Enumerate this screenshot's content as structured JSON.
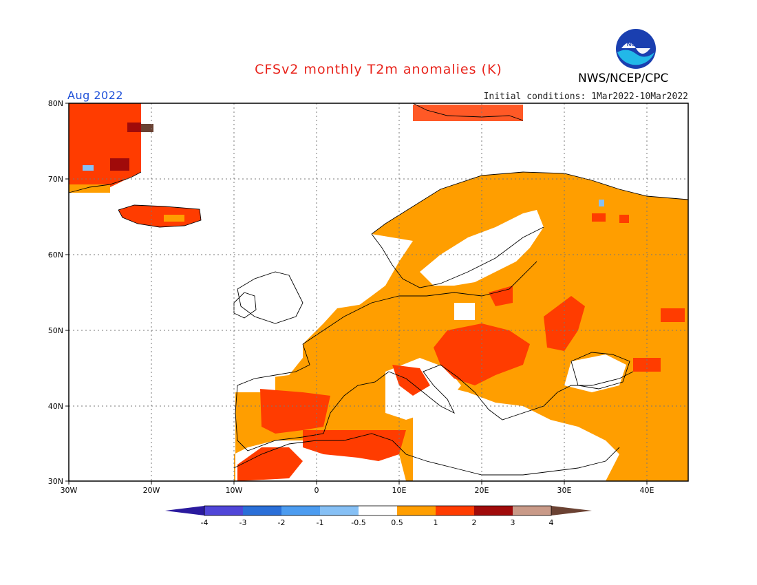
{
  "header": {
    "title": "CFSv2 monthly T2m anomalies (K)",
    "org": "NWS/NCEP/CPC",
    "valid_month": "Aug 2022",
    "initial_conditions": "Initial conditions: 1Mar2022-10Mar2022",
    "logo_text": "NOAA"
  },
  "map": {
    "region": "Europe",
    "lon_range": [
      -30,
      45
    ],
    "lat_range": [
      30,
      80
    ],
    "lat_labels": [
      "30N",
      "40N",
      "50N",
      "60N",
      "70N",
      "80N"
    ],
    "lon_labels": [
      "30W",
      "20W",
      "10W",
      "0",
      "10E",
      "20E",
      "30E",
      "40E"
    ],
    "gridlines": "dotted"
  },
  "colorbar": {
    "labels": [
      "-4",
      "-3",
      "-2",
      "-1",
      "-0.5",
      "0.5",
      "1",
      "2",
      "3",
      "4"
    ],
    "colors": [
      "#2a1a9e",
      "#5046d8",
      "#2a6fd8",
      "#4c9cf0",
      "#86c0f5",
      "#ffffff",
      "#ff9e00",
      "#ff3c00",
      "#a00a0a",
      "#c99a88",
      "#6b4233"
    ]
  }
}
